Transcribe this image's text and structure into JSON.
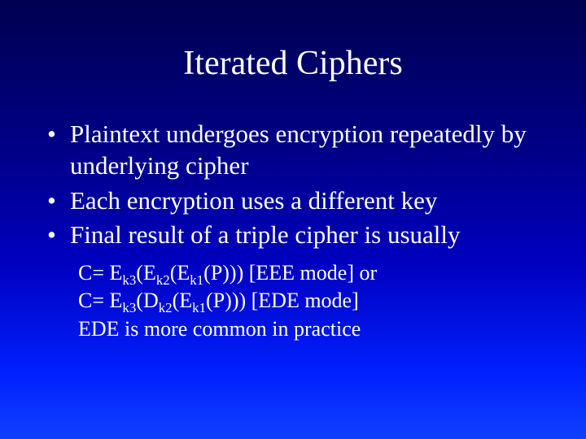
{
  "title": "Iterated Ciphers",
  "bullets": [
    "Plaintext undergoes encryption repeatedly by underlying cipher",
    "Each encryption uses a different key",
    "Final result of a triple cipher is usually"
  ],
  "formulas": {
    "line1_pre": "C= E",
    "line1_s1": "k3",
    "line1_m1": "(E",
    "line1_s2": "k2",
    "line1_m2": "(E",
    "line1_s3": "k1",
    "line1_post": "(P))) [EEE mode] or",
    "line2_pre": "C= E",
    "line2_s1": "k3",
    "line2_m1": "(D",
    "line2_s2": "k2",
    "line2_m2": "(E",
    "line2_s3": "k1",
    "line2_post": "(P))) [EDE mode]",
    "line3": "EDE is more common in practice"
  },
  "style": {
    "background_gradient": [
      "#000050",
      "#000088",
      "#0000c0",
      "#0020ff",
      "#1040ff"
    ],
    "text_color": "#ffffff",
    "title_fontsize": 42,
    "bullet_fontsize": 31,
    "sub_fontsize": 26,
    "font_family": "Times New Roman"
  }
}
